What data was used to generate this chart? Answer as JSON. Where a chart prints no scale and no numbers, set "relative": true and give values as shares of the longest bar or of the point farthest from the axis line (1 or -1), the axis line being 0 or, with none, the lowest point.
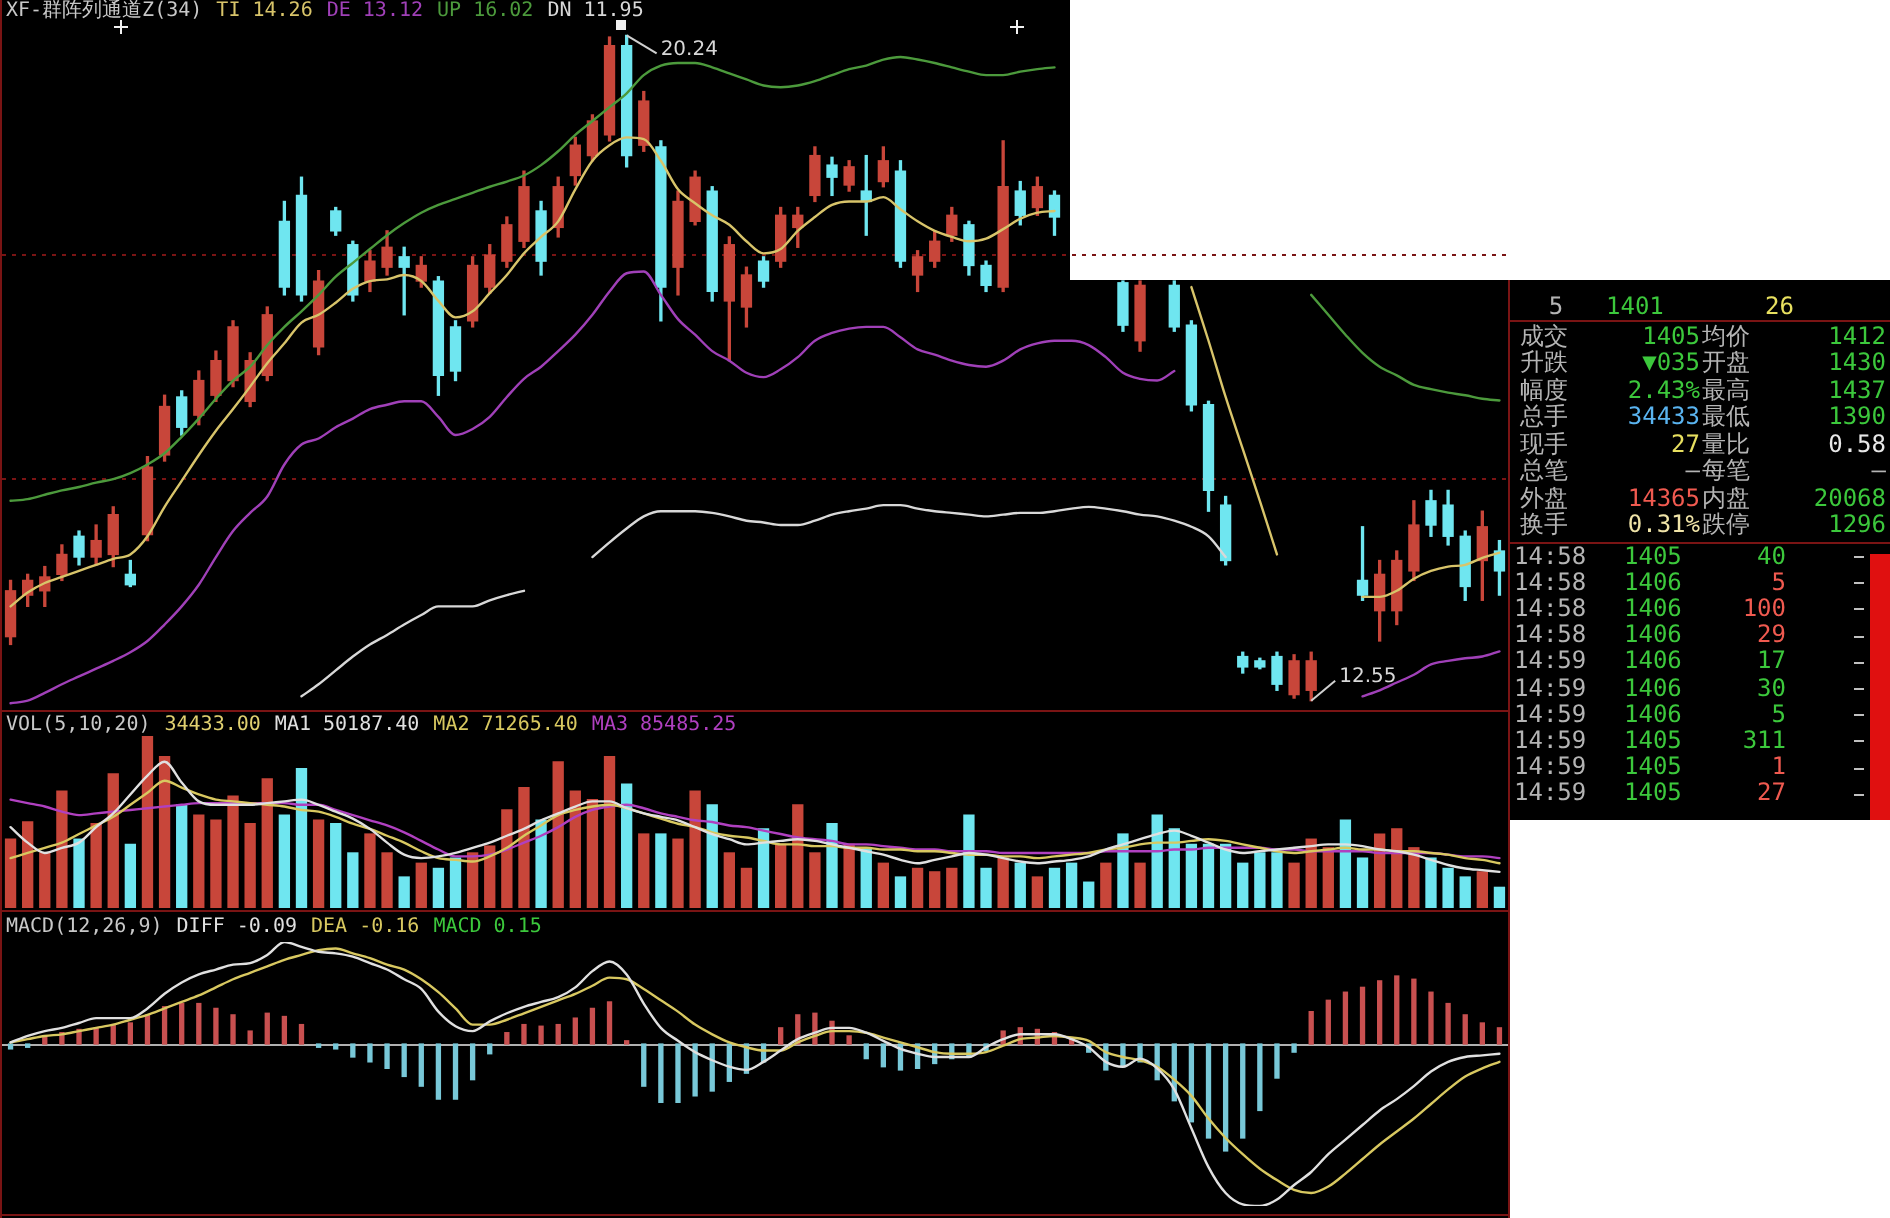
{
  "chart_data": [
    {
      "type": "candlestick",
      "title": "XF-群阵列通道Z(34)",
      "legend": "top left",
      "grid": "y",
      "tick_labels": false,
      "yticks": [
        {
          "value": 15.11,
          "label": null
        },
        {
          "value": 17.7,
          "label": null
        }
      ],
      "categories": [
        null,
        null,
        null,
        null,
        null,
        null,
        null,
        null,
        null,
        null,
        null,
        null,
        null,
        null,
        null,
        null,
        null,
        null,
        null,
        null,
        null,
        null,
        null,
        null,
        null,
        null,
        null,
        null,
        null,
        null,
        null,
        null,
        null,
        null,
        null,
        null,
        null,
        null,
        null,
        null,
        null,
        null,
        null,
        null,
        null,
        null,
        null,
        null,
        null,
        null,
        null,
        null,
        null,
        null,
        null,
        null,
        null,
        null,
        null,
        null,
        null,
        null,
        null,
        null,
        null,
        null,
        null,
        null,
        null,
        null,
        null,
        null,
        null,
        null,
        null,
        null,
        null,
        null,
        null,
        null,
        null,
        null,
        null,
        null,
        null,
        null,
        null,
        null
      ],
      "ohlc": [
        [
          13.29,
          13.94,
          13.2,
          13.82
        ],
        [
          13.77,
          14.01,
          13.64,
          13.94
        ],
        [
          13.82,
          14.1,
          13.64,
          13.98
        ],
        [
          14.01,
          14.35,
          13.94,
          14.24
        ],
        [
          14.45,
          14.51,
          14.12,
          14.21
        ],
        [
          14.21,
          14.58,
          14.12,
          14.4
        ],
        [
          14.24,
          14.79,
          14.1,
          14.7
        ],
        [
          14.01,
          14.17,
          13.87,
          13.89
        ],
        [
          14.47,
          15.37,
          14.4,
          15.25
        ],
        [
          15.39,
          16.08,
          15.32,
          15.95
        ],
        [
          16.06,
          16.13,
          15.62,
          15.71
        ],
        [
          15.85,
          16.36,
          15.74,
          16.25
        ],
        [
          16.08,
          16.59,
          16.01,
          16.48
        ],
        [
          16.25,
          16.94,
          16.18,
          16.87
        ],
        [
          16.01,
          16.57,
          15.95,
          16.48
        ],
        [
          16.31,
          17.1,
          16.25,
          17.01
        ],
        [
          18.09,
          18.32,
          17.24,
          17.33
        ],
        [
          18.39,
          18.6,
          17.17,
          17.24
        ],
        [
          16.64,
          17.52,
          16.55,
          17.4
        ],
        [
          18.21,
          18.25,
          17.93,
          17.98
        ],
        [
          17.82,
          17.86,
          17.17,
          17.24
        ],
        [
          17.4,
          17.75,
          17.28,
          17.63
        ],
        [
          17.56,
          17.98,
          17.47,
          17.79
        ],
        [
          17.68,
          17.79,
          17.01,
          17.56
        ],
        [
          17.4,
          17.68,
          17.33,
          17.58
        ],
        [
          17.4,
          17.45,
          16.08,
          16.31
        ],
        [
          16.87,
          16.94,
          16.25,
          16.36
        ],
        [
          16.94,
          17.68,
          16.87,
          17.58
        ],
        [
          17.33,
          17.82,
          17.26,
          17.7
        ],
        [
          17.63,
          18.14,
          17.56,
          18.05
        ],
        [
          17.86,
          18.67,
          17.79,
          18.49
        ],
        [
          18.21,
          18.32,
          17.47,
          17.63
        ],
        [
          18.02,
          18.6,
          17.91,
          18.49
        ],
        [
          18.62,
          19.06,
          18.51,
          18.97
        ],
        [
          18.85,
          19.32,
          18.79,
          19.25
        ],
        [
          19.09,
          20.22,
          19.02,
          20.12
        ],
        [
          20.12,
          20.24,
          18.72,
          18.85
        ],
        [
          18.97,
          19.59,
          18.9,
          19.48
        ],
        [
          18.95,
          19.02,
          16.94,
          17.33
        ],
        [
          17.56,
          18.44,
          17.24,
          18.32
        ],
        [
          18.09,
          18.67,
          18.05,
          18.6
        ],
        [
          18.44,
          18.49,
          17.17,
          17.28
        ],
        [
          17.17,
          17.91,
          16.48,
          17.82
        ],
        [
          17.1,
          17.56,
          16.87,
          17.47
        ],
        [
          17.63,
          17.68,
          17.33,
          17.4
        ],
        [
          17.63,
          18.25,
          17.56,
          18.16
        ],
        [
          18.02,
          18.25,
          17.79,
          18.16
        ],
        [
          18.39,
          18.95,
          18.32,
          18.85
        ],
        [
          18.74,
          18.83,
          18.39,
          18.6
        ],
        [
          18.51,
          18.79,
          18.44,
          18.72
        ],
        [
          18.44,
          18.85,
          17.93,
          18.32
        ],
        [
          18.55,
          18.95,
          18.49,
          18.79
        ],
        [
          18.67,
          18.79,
          17.56,
          17.63
        ],
        [
          17.47,
          17.75,
          17.28,
          17.68
        ],
        [
          17.63,
          17.98,
          17.56,
          17.86
        ],
        [
          17.93,
          18.25,
          17.86,
          18.16
        ],
        [
          18.05,
          18.09,
          17.47,
          17.58
        ],
        [
          17.58,
          17.63,
          17.28,
          17.35
        ],
        [
          17.33,
          19.02,
          17.28,
          18.49
        ],
        [
          18.44,
          18.55,
          18.05,
          18.16
        ],
        [
          18.25,
          18.6,
          18.16,
          18.49
        ],
        [
          18.39,
          18.44,
          17.93,
          18.14
        ],
        null,
        null,
        null,
        [
          17.38,
          17.4,
          16.82,
          16.89
        ],
        [
          16.71,
          17.4,
          16.59,
          17.35
        ],
        null,
        [
          17.35,
          17.4,
          16.82,
          16.87
        ],
        [
          16.89,
          16.94,
          15.9,
          15.97
        ],
        [
          15.97,
          16.01,
          14.74,
          14.98
        ],
        [
          14.81,
          14.91,
          14.12,
          14.17
        ],
        [
          13.06,
          13.11,
          12.87,
          12.94
        ],
        [
          13.01,
          13.04,
          12.92,
          12.94
        ],
        [
          13.06,
          13.11,
          12.67,
          12.74
        ],
        [
          12.62,
          13.08,
          12.58,
          13.01
        ],
        [
          12.67,
          13.11,
          12.55,
          13.01
        ],
        null,
        null,
        [
          13.94,
          14.56,
          13.71,
          13.77
        ],
        [
          13.59,
          14.17,
          13.24,
          14.01
        ],
        [
          13.59,
          14.28,
          13.43,
          14.17
        ],
        [
          14.05,
          14.86,
          13.94,
          14.58
        ],
        [
          14.86,
          14.98,
          14.45,
          14.58
        ],
        [
          14.81,
          14.98,
          14.35,
          14.45
        ],
        [
          14.45,
          14.51,
          13.71,
          13.87
        ],
        [
          14.17,
          14.74,
          13.71,
          14.56
        ],
        [
          14.28,
          14.4,
          13.77,
          14.05
        ]
      ],
      "colors": [
        "#c8463a",
        "#c8463a",
        "#c8463a",
        "#c8463a",
        "#6fe6f0",
        "#c8463a",
        "#c8463a",
        "#6fe6f0",
        "#c8463a",
        "#c8463a",
        "#6fe6f0",
        "#c8463a",
        "#c8463a",
        "#c8463a",
        "#c8463a",
        "#c8463a",
        "#6fe6f0",
        "#6fe6f0",
        "#c8463a",
        "#6fe6f0",
        "#6fe6f0",
        "#c8463a",
        "#c8463a",
        "#6fe6f0",
        "#c8463a",
        "#6fe6f0",
        "#6fe6f0",
        "#c8463a",
        "#c8463a",
        "#c8463a",
        "#c8463a",
        "#6fe6f0",
        "#c8463a",
        "#c8463a",
        "#c8463a",
        "#c8463a",
        "#6fe6f0",
        "#c8463a",
        "#6fe6f0",
        "#c8463a",
        "#c8463a",
        "#6fe6f0",
        "#c8463a",
        "#c8463a",
        "#6fe6f0",
        "#c8463a",
        "#c8463a",
        "#c8463a",
        "#6fe6f0",
        "#c8463a",
        "#6fe6f0",
        "#c8463a",
        "#6fe6f0",
        "#c8463a",
        "#c8463a",
        "#c8463a",
        "#6fe6f0",
        "#6fe6f0",
        "#c8463a",
        "#6fe6f0",
        "#c8463a",
        "#6fe6f0",
        null,
        null,
        null,
        "#6fe6f0",
        "#c8463a",
        null,
        "#6fe6f0",
        "#6fe6f0",
        "#6fe6f0",
        "#6fe6f0",
        "#6fe6f0",
        "#6fe6f0",
        "#6fe6f0",
        "#c8463a",
        "#c8463a",
        null,
        null,
        "#6fe6f0",
        "#c8463a",
        "#c8463a",
        "#c8463a",
        "#6fe6f0",
        "#6fe6f0",
        "#6fe6f0",
        "#c8463a",
        "#6fe6f0"
      ],
      "series": [
        {
          "name": "TI 14.26",
          "type": "line",
          "color": "#d8c46a",
          "values": [
            13.64,
            13.8,
            13.91,
            13.98,
            14.05,
            14.12,
            14.19,
            14.24,
            14.45,
            14.79,
            15.09,
            15.39,
            15.67,
            15.92,
            16.18,
            16.45,
            16.68,
            16.92,
            17.01,
            17.15,
            17.31,
            17.4,
            17.42,
            17.47,
            17.4,
            17.17,
            16.98,
            17.05,
            17.26,
            17.47,
            17.72,
            17.91,
            18.09,
            18.46,
            18.79,
            18.97,
            19.06,
            19.04,
            18.79,
            18.46,
            18.3,
            18.16,
            18.05,
            17.86,
            17.72,
            17.77,
            17.98,
            18.14,
            18.28,
            18.32,
            18.32,
            18.37,
            18.23,
            18.09,
            17.98,
            17.91,
            17.86,
            17.89,
            18.0,
            18.12,
            18.19,
            18.21,
            null,
            null,
            null,
            null,
            null,
            null,
            null,
            17.33,
            16.71,
            16.06,
            15.46,
            14.86,
            14.24,
            null,
            null,
            null,
            null,
            13.75,
            13.75,
            13.82,
            13.96,
            14.05,
            14.1,
            14.12,
            14.2,
            14.26
          ]
        },
        {
          "name": "DE 13.12",
          "type": "line",
          "color": "#a040b8",
          "values": [
            12.52,
            12.55,
            12.64,
            12.74,
            12.83,
            12.92,
            13.01,
            13.11,
            13.24,
            13.43,
            13.64,
            13.89,
            14.21,
            14.51,
            14.72,
            14.91,
            15.28,
            15.51,
            15.58,
            15.71,
            15.81,
            15.92,
            15.97,
            16.01,
            16.01,
            15.83,
            15.62,
            15.69,
            15.83,
            16.06,
            16.27,
            16.41,
            16.59,
            16.78,
            17.01,
            17.28,
            17.49,
            17.51,
            17.24,
            16.96,
            16.78,
            16.59,
            16.48,
            16.34,
            16.29,
            16.38,
            16.52,
            16.71,
            16.8,
            16.85,
            16.87,
            16.87,
            16.75,
            16.61,
            16.55,
            16.48,
            16.43,
            16.41,
            16.48,
            16.61,
            16.68,
            16.71,
            16.71,
            16.66,
            16.52,
            16.34,
            16.27,
            16.25,
            16.36,
            null,
            null,
            null,
            null,
            null,
            null,
            null,
            null,
            null,
            null,
            12.6,
            12.67,
            12.76,
            12.85,
            12.97,
            13.01,
            13.04,
            13.06,
            13.12
          ]
        },
        {
          "name": "UP 16.02",
          "type": "line",
          "color": "#4c9a3c",
          "values": [
            14.86,
            14.88,
            14.93,
            14.98,
            15.02,
            15.07,
            15.11,
            15.18,
            15.28,
            15.41,
            15.6,
            15.81,
            16.04,
            16.25,
            16.41,
            16.66,
            16.87,
            17.05,
            17.24,
            17.45,
            17.61,
            17.77,
            17.93,
            18.07,
            18.19,
            18.28,
            18.35,
            18.42,
            18.49,
            18.55,
            18.62,
            18.74,
            18.9,
            19.09,
            19.25,
            19.41,
            19.57,
            19.78,
            19.89,
            19.92,
            19.92,
            19.87,
            19.8,
            19.73,
            19.66,
            19.64,
            19.66,
            19.71,
            19.78,
            19.85,
            19.89,
            19.96,
            19.99,
            19.96,
            19.92,
            19.87,
            19.82,
            19.78,
            19.78,
            19.82,
            19.85,
            19.87,
            null,
            null,
            null,
            null,
            null,
            null,
            null,
            null,
            null,
            null,
            null,
            null,
            null,
            null,
            17.24,
            17.01,
            16.78,
            16.57,
            16.41,
            16.31,
            16.2,
            16.15,
            16.11,
            16.08,
            16.04,
            16.02
          ]
        },
        {
          "name": "DN 11.95",
          "type": "line",
          "color": "#d8d8d8",
          "values": [
            null,
            null,
            null,
            null,
            null,
            null,
            null,
            null,
            null,
            null,
            null,
            null,
            null,
            null,
            null,
            null,
            null,
            12.6,
            12.74,
            12.9,
            13.06,
            13.2,
            13.31,
            13.43,
            13.54,
            13.64,
            13.64,
            13.64,
            13.71,
            13.77,
            13.82,
            null,
            null,
            null,
            14.21,
            14.38,
            14.54,
            14.68,
            14.74,
            14.74,
            14.74,
            14.72,
            14.68,
            14.63,
            14.61,
            14.58,
            14.58,
            14.63,
            14.7,
            14.74,
            14.77,
            14.81,
            14.81,
            14.77,
            14.74,
            14.72,
            14.7,
            14.68,
            14.7,
            14.72,
            14.72,
            14.74,
            14.77,
            14.79,
            14.77,
            14.74,
            14.7,
            14.68,
            14.63,
            14.56,
            14.45,
            14.21,
            null,
            null,
            null,
            null,
            null,
            null,
            null,
            null,
            null,
            null,
            null,
            null,
            null,
            null,
            null,
            null
          ]
        }
      ],
      "annotations": [
        "20.24",
        "12.55"
      ]
    },
    {
      "type": "bar",
      "title": "VOL(5,10,20)",
      "relative": true,
      "tick_labels": false,
      "legend": "top left",
      "categories": [
        null,
        null,
        null,
        null,
        null,
        null,
        null,
        null,
        null,
        null,
        null,
        null,
        null,
        null,
        null,
        null,
        null,
        null,
        null,
        null,
        null,
        null,
        null,
        null,
        null,
        null,
        null,
        null,
        null,
        null,
        null,
        null,
        null,
        null,
        null,
        null,
        null,
        null,
        null,
        null,
        null,
        null,
        null,
        null,
        null,
        null,
        null,
        null,
        null,
        null,
        null,
        null,
        null,
        null,
        null,
        null,
        null,
        null,
        null,
        null,
        null,
        null,
        null,
        null,
        null,
        null,
        null,
        null,
        null,
        null,
        null,
        null,
        null,
        null,
        null,
        null,
        null,
        null,
        null,
        null,
        null,
        null,
        null,
        null,
        null,
        null,
        null,
        null
      ],
      "series": [
        {
          "colors": [
            "#c8463a",
            "#c8463a",
            "#c8463a",
            "#c8463a",
            "#6fe6f0",
            "#c8463a",
            "#c8463a",
            "#6fe6f0",
            "#c8463a",
            "#c8463a",
            "#6fe6f0",
            "#c8463a",
            "#c8463a",
            "#c8463a",
            "#c8463a",
            "#c8463a",
            "#6fe6f0",
            "#6fe6f0",
            "#c8463a",
            "#6fe6f0",
            "#6fe6f0",
            "#c8463a",
            "#c8463a",
            "#6fe6f0",
            "#c8463a",
            "#6fe6f0",
            "#6fe6f0",
            "#c8463a",
            "#c8463a",
            "#c8463a",
            "#c8463a",
            "#6fe6f0",
            "#c8463a",
            "#c8463a",
            "#c8463a",
            "#c8463a",
            "#6fe6f0",
            "#c8463a",
            "#6fe6f0",
            "#c8463a",
            "#c8463a",
            "#6fe6f0",
            "#c8463a",
            "#c8463a",
            "#6fe6f0",
            "#c8463a",
            "#c8463a",
            "#c8463a",
            "#6fe6f0",
            "#c8463a",
            "#6fe6f0",
            "#c8463a",
            "#6fe6f0",
            "#c8463a",
            "#c8463a",
            "#c8463a",
            "#6fe6f0",
            "#6fe6f0",
            "#c8463a",
            "#6fe6f0",
            "#c8463a",
            "#6fe6f0",
            "#6fe6f0",
            "#6fe6f0",
            "#c8463a",
            "#6fe6f0",
            "#c8463a",
            "#6fe6f0",
            "#6fe6f0",
            "#6fe6f0",
            "#6fe6f0",
            "#6fe6f0",
            "#6fe6f0",
            "#6fe6f0",
            "#6fe6f0",
            "#c8463a",
            "#c8463a",
            "#c8463a",
            "#6fe6f0",
            "#6fe6f0",
            "#c8463a",
            "#c8463a",
            "#c8463a",
            "#6fe6f0",
            "#6fe6f0",
            "#6fe6f0",
            "#c8463a",
            "#6fe6f0"
          ],
          "values": [
            0.4,
            0.5,
            0.32,
            0.68,
            0.4,
            0.49,
            0.78,
            0.37,
            1.0,
            0.88,
            0.6,
            0.54,
            0.51,
            0.65,
            0.49,
            0.75,
            0.54,
            0.81,
            0.51,
            0.49,
            0.32,
            0.43,
            0.32,
            0.18,
            0.26,
            0.23,
            0.29,
            0.32,
            0.36,
            0.57,
            0.7,
            0.51,
            0.85,
            0.68,
            0.63,
            0.88,
            0.72,
            0.43,
            0.43,
            0.4,
            0.68,
            0.6,
            0.32,
            0.23,
            0.46,
            0.37,
            0.6,
            0.32,
            0.49,
            0.37,
            0.35,
            0.26,
            0.18,
            0.23,
            0.21,
            0.23,
            0.54,
            0.23,
            0.29,
            0.26,
            0.18,
            0.23,
            0.26,
            0.15,
            0.26,
            0.43,
            0.26,
            0.54,
            0.46,
            0.37,
            0.37,
            0.37,
            0.26,
            0.32,
            0.32,
            0.26,
            0.4,
            0.35,
            0.51,
            0.29,
            0.43,
            0.46,
            0.35,
            0.29,
            0.23,
            0.18,
            0.21,
            0.12
          ]
        },
        {
          "name": "MA1 50187.40",
          "type": "line",
          "color": "#e0e0e0",
          "values": [
            0.47,
            0.38,
            0.32,
            0.35,
            0.38,
            0.47,
            0.55,
            0.66,
            0.77,
            0.85,
            0.73,
            0.62,
            0.6,
            0.6,
            0.6,
            0.61,
            0.62,
            0.63,
            0.6,
            0.56,
            0.52,
            0.46,
            0.38,
            0.31,
            0.29,
            0.3,
            0.32,
            0.35,
            0.38,
            0.42,
            0.46,
            0.51,
            0.55,
            0.59,
            0.62,
            0.62,
            0.58,
            0.55,
            0.53,
            0.51,
            0.47,
            0.43,
            0.4,
            0.37,
            0.38,
            0.39,
            0.4,
            0.39,
            0.37,
            0.35,
            0.33,
            0.31,
            0.28,
            0.26,
            0.28,
            0.3,
            0.32,
            0.31,
            0.29,
            0.27,
            0.26,
            0.27,
            0.28,
            0.3,
            0.34,
            0.37,
            0.4,
            0.43,
            0.45,
            0.42,
            0.38,
            0.34,
            0.32,
            0.33,
            0.34,
            0.35,
            0.36,
            0.37,
            0.37,
            0.36,
            0.34,
            0.33,
            0.31,
            0.28,
            0.25,
            0.23,
            0.22,
            0.21
          ]
        },
        {
          "name": "MA2 71265.40",
          "type": "line",
          "color": "#d8c860",
          "values": [
            0.29,
            0.32,
            0.35,
            0.38,
            0.43,
            0.48,
            0.53,
            0.6,
            0.67,
            0.74,
            0.7,
            0.66,
            0.63,
            0.62,
            0.61,
            0.6,
            0.59,
            0.57,
            0.56,
            0.53,
            0.49,
            0.46,
            0.42,
            0.38,
            0.33,
            0.29,
            0.28,
            0.27,
            0.3,
            0.35,
            0.42,
            0.48,
            0.54,
            0.57,
            0.59,
            0.6,
            0.58,
            0.55,
            0.52,
            0.49,
            0.47,
            0.44,
            0.42,
            0.41,
            0.39,
            0.37,
            0.37,
            0.36,
            0.36,
            0.35,
            0.35,
            0.34,
            0.34,
            0.33,
            0.33,
            0.32,
            0.31,
            0.31,
            0.3,
            0.3,
            0.29,
            0.3,
            0.31,
            0.32,
            0.34,
            0.35,
            0.37,
            0.38,
            0.38,
            0.39,
            0.4,
            0.39,
            0.37,
            0.35,
            0.33,
            0.32,
            0.33,
            0.34,
            0.35,
            0.34,
            0.34,
            0.33,
            0.33,
            0.32,
            0.31,
            0.29,
            0.28,
            0.26
          ]
        },
        {
          "name": "MA3 85485.25",
          "type": "line",
          "color": "#b040c0",
          "values": [
            0.63,
            0.61,
            0.59,
            0.56,
            0.54,
            0.55,
            0.56,
            0.57,
            0.58,
            0.59,
            0.6,
            0.61,
            0.61,
            0.61,
            0.61,
            0.61,
            0.61,
            0.6,
            0.6,
            0.57,
            0.54,
            0.51,
            0.48,
            0.44,
            0.39,
            0.34,
            0.3,
            0.3,
            0.31,
            0.34,
            0.38,
            0.42,
            0.47,
            0.53,
            0.57,
            0.59,
            0.6,
            0.58,
            0.55,
            0.53,
            0.51,
            0.5,
            0.48,
            0.47,
            0.45,
            0.43,
            0.41,
            0.4,
            0.39,
            0.37,
            0.37,
            0.36,
            0.35,
            0.34,
            0.34,
            0.33,
            0.33,
            0.33,
            0.32,
            0.32,
            0.32,
            0.32,
            0.32,
            0.32,
            0.33,
            0.33,
            0.33,
            0.33,
            0.34,
            0.34,
            0.35,
            0.35,
            0.35,
            0.35,
            0.34,
            0.34,
            0.33,
            0.33,
            0.33,
            0.33,
            0.32,
            0.32,
            0.32,
            0.32,
            0.31,
            0.3,
            0.3,
            0.29
          ]
        }
      ],
      "annotations": [
        "34433.00"
      ]
    },
    {
      "type": "bar",
      "title": "MACD(12,26,9)",
      "relative": true,
      "tick_labels": false,
      "legend": "top left",
      "categories": [
        null,
        null,
        null,
        null,
        null,
        null,
        null,
        null,
        null,
        null,
        null,
        null,
        null,
        null,
        null,
        null,
        null,
        null,
        null,
        null,
        null,
        null,
        null,
        null,
        null,
        null,
        null,
        null,
        null,
        null,
        null,
        null,
        null,
        null,
        null,
        null,
        null,
        null,
        null,
        null,
        null,
        null,
        null,
        null,
        null,
        null,
        null,
        null,
        null,
        null,
        null,
        null,
        null,
        null,
        null,
        null,
        null,
        null,
        null,
        null,
        null,
        null,
        null,
        null,
        null,
        null,
        null,
        null,
        null,
        null,
        null,
        null,
        null,
        null,
        null,
        null,
        null,
        null,
        null,
        null,
        null,
        null,
        null,
        null,
        null,
        null,
        null,
        null
      ],
      "series": [
        {
          "name": "DIFF -0.09",
          "type": "line",
          "color": "#e0e0e0",
          "values": [
            0.01,
            0.05,
            0.08,
            0.1,
            0.13,
            0.16,
            0.16,
            0.16,
            0.22,
            0.31,
            0.38,
            0.43,
            0.46,
            0.49,
            0.5,
            0.55,
            0.63,
            0.6,
            0.57,
            0.56,
            0.54,
            0.5,
            0.46,
            0.4,
            0.34,
            0.2,
            0.11,
            0.08,
            0.14,
            0.19,
            0.23,
            0.26,
            0.29,
            0.35,
            0.45,
            0.51,
            0.43,
            0.25,
            0.1,
            0.02,
            -0.05,
            -0.1,
            -0.14,
            -0.16,
            -0.11,
            -0.04,
            0.03,
            0.07,
            0.1,
            0.1,
            0.07,
            0.02,
            -0.03,
            -0.06,
            -0.08,
            -0.08,
            -0.08,
            -0.02,
            0.03,
            0.06,
            0.06,
            0.06,
            0.03,
            -0.02,
            -0.11,
            -0.14,
            -0.09,
            -0.15,
            -0.28,
            -0.52,
            -0.76,
            -0.92,
            -0.99,
            -1.0,
            -0.96,
            -0.87,
            -0.79,
            -0.68,
            -0.59,
            -0.5,
            -0.41,
            -0.34,
            -0.26,
            -0.17,
            -0.11,
            -0.08,
            -0.07,
            -0.06
          ]
        },
        {
          "name": "DEA -0.16",
          "type": "line",
          "color": "#d8c860",
          "values": [
            0.01,
            0.03,
            0.05,
            0.06,
            0.08,
            0.1,
            0.12,
            0.15,
            0.18,
            0.22,
            0.26,
            0.3,
            0.35,
            0.4,
            0.44,
            0.48,
            0.52,
            0.55,
            0.58,
            0.59,
            0.56,
            0.53,
            0.49,
            0.46,
            0.4,
            0.32,
            0.22,
            0.12,
            0.12,
            0.15,
            0.19,
            0.23,
            0.27,
            0.31,
            0.36,
            0.41,
            0.4,
            0.34,
            0.27,
            0.2,
            0.12,
            0.06,
            0.01,
            -0.02,
            -0.04,
            -0.04,
            0.01,
            0.05,
            0.08,
            0.08,
            0.07,
            0.04,
            0.01,
            -0.02,
            -0.05,
            -0.06,
            -0.06,
            -0.05,
            -0.01,
            0.03,
            0.04,
            0.05,
            0.04,
            0.02,
            -0.05,
            -0.08,
            -0.1,
            -0.14,
            -0.22,
            -0.32,
            -0.46,
            -0.58,
            -0.68,
            -0.77,
            -0.84,
            -0.9,
            -0.92,
            -0.88,
            -0.8,
            -0.71,
            -0.62,
            -0.54,
            -0.46,
            -0.37,
            -0.28,
            -0.2,
            -0.15,
            -0.11
          ]
        },
        {
          "colors": [
            "#78c8d8",
            "#78c8d8",
            "#c85050",
            "#c85050",
            "#c85050",
            "#c85050",
            "#c85050",
            "#c85050",
            "#c85050",
            "#c85050",
            "#c85050",
            "#c85050",
            "#c85050",
            "#c85050",
            "#c85050",
            "#c85050",
            "#c85050",
            "#c85050",
            "#78c8d8",
            "#78c8d8",
            "#78c8d8",
            "#78c8d8",
            "#78c8d8",
            "#78c8d8",
            "#78c8d8",
            "#78c8d8",
            "#78c8d8",
            "#78c8d8",
            "#78c8d8",
            "#c85050",
            "#c85050",
            "#c85050",
            "#c85050",
            "#c85050",
            "#c85050",
            "#c85050",
            "#c85050",
            "#78c8d8",
            "#78c8d8",
            "#78c8d8",
            "#78c8d8",
            "#78c8d8",
            "#78c8d8",
            "#78c8d8",
            "#78c8d8",
            "#c85050",
            "#c85050",
            "#c85050",
            "#c85050",
            "#c85050",
            "#78c8d8",
            "#78c8d8",
            "#78c8d8",
            "#78c8d8",
            "#78c8d8",
            "#78c8d8",
            "#78c8d8",
            "#78c8d8",
            "#c85050",
            "#c85050",
            "#c85050",
            "#c85050",
            "#c85050",
            "#78c8d8",
            "#78c8d8",
            "#78c8d8",
            "#78c8d8",
            "#78c8d8",
            "#78c8d8",
            "#78c8d8",
            "#78c8d8",
            "#78c8d8",
            "#78c8d8",
            "#78c8d8",
            "#78c8d8",
            "#78c8d8",
            "#c85050",
            "#c85050",
            "#c85050",
            "#c85050",
            "#c85050",
            "#c85050",
            "#c85050",
            "#c85050",
            "#c85050",
            "#c85050",
            "#c85050",
            "#c85050"
          ],
          "values": [
            -0.03,
            -0.02,
            0.04,
            0.07,
            0.09,
            0.1,
            0.12,
            0.13,
            0.18,
            0.23,
            0.25,
            0.25,
            0.22,
            0.18,
            0.08,
            0.19,
            0.17,
            0.12,
            -0.02,
            -0.03,
            -0.08,
            -0.11,
            -0.15,
            -0.2,
            -0.26,
            -0.34,
            -0.34,
            -0.22,
            -0.06,
            0.07,
            0.12,
            0.11,
            0.12,
            0.16,
            0.22,
            0.26,
            0.02,
            -0.26,
            -0.36,
            -0.36,
            -0.32,
            -0.29,
            -0.23,
            -0.18,
            -0.11,
            0.1,
            0.18,
            0.19,
            0.14,
            0.05,
            -0.09,
            -0.14,
            -0.16,
            -0.15,
            -0.12,
            -0.09,
            -0.07,
            -0.04,
            0.08,
            0.1,
            0.09,
            0.07,
            0.04,
            -0.05,
            -0.16,
            -0.14,
            -0.11,
            -0.22,
            -0.35,
            -0.48,
            -0.58,
            -0.66,
            -0.58,
            -0.41,
            -0.21,
            -0.05,
            0.2,
            0.27,
            0.32,
            0.35,
            0.39,
            0.42,
            0.4,
            0.32,
            0.25,
            0.18,
            0.13,
            0.1
          ]
        }
      ],
      "annotations": [
        "MACD 0.15"
      ]
    },
    {
      "type": "other",
      "annotations": [
        "5",
        "1401",
        "26",
        "成交",
        "1405",
        "均价",
        "1412",
        "升跌",
        "▼035",
        "开盘",
        "1430",
        "幅度",
        "2.43%",
        "最高",
        "1437",
        "总手",
        "34433",
        "最低",
        "1390",
        "现手",
        "27",
        "量比",
        "0.58",
        "总笔",
        "—",
        "每笔",
        "—",
        "外盘",
        "14365",
        "内盘",
        "20068",
        "换手",
        "0.31%",
        "跌停",
        "1296",
        "14:58",
        "1405",
        "40",
        "14:58",
        "1406",
        "5",
        "14:58",
        "1406",
        "100",
        "14:58",
        "1406",
        "29",
        "14:59",
        "1406",
        "17",
        "14:59",
        "1406",
        "30",
        "14:59",
        "1406",
        "5",
        "14:59",
        "1405",
        "311",
        "14:59",
        "1405",
        "1",
        "14:59",
        "1405",
        "27"
      ]
    }
  ]
}
